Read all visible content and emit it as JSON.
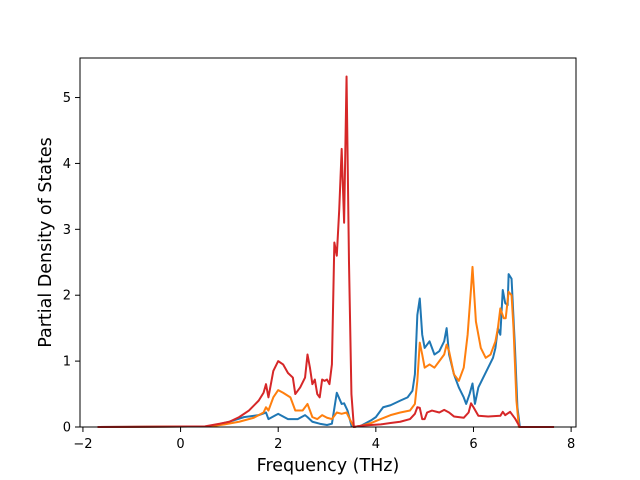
{
  "chart_data": {
    "type": "line",
    "title": "",
    "xlabel": "Frequency (THz)",
    "ylabel": "Partial Density of States",
    "xlim": [
      -2.06,
      8.1
    ],
    "ylim": [
      0,
      5.6
    ],
    "xticks": [
      -2,
      0,
      2,
      4,
      6,
      8
    ],
    "yticks": [
      0,
      1,
      2,
      3,
      4,
      5
    ],
    "grid": false,
    "legend": "none",
    "series": [
      {
        "color": "#1f77b4",
        "points": [
          [
            -1.7,
            0
          ],
          [
            0.6,
            0.01
          ],
          [
            1.0,
            0.08
          ],
          [
            1.3,
            0.15
          ],
          [
            1.6,
            0.18
          ],
          [
            1.75,
            0.22
          ],
          [
            1.8,
            0.12
          ],
          [
            1.95,
            0.18
          ],
          [
            2.0,
            0.2
          ],
          [
            2.2,
            0.12
          ],
          [
            2.4,
            0.12
          ],
          [
            2.55,
            0.18
          ],
          [
            2.6,
            0.15
          ],
          [
            2.7,
            0.08
          ],
          [
            2.85,
            0.05
          ],
          [
            3.0,
            0.03
          ],
          [
            3.1,
            0.05
          ],
          [
            3.2,
            0.52
          ],
          [
            3.3,
            0.35
          ],
          [
            3.35,
            0.36
          ],
          [
            3.42,
            0.25
          ],
          [
            3.5,
            0.02
          ],
          [
            3.55,
            0
          ],
          [
            3.7,
            0.02
          ],
          [
            3.9,
            0.1
          ],
          [
            4.0,
            0.15
          ],
          [
            4.1,
            0.25
          ],
          [
            4.15,
            0.3
          ],
          [
            4.3,
            0.33
          ],
          [
            4.5,
            0.4
          ],
          [
            4.65,
            0.45
          ],
          [
            4.75,
            0.55
          ],
          [
            4.8,
            0.8
          ],
          [
            4.85,
            1.7
          ],
          [
            4.9,
            1.95
          ],
          [
            4.95,
            1.4
          ],
          [
            5.0,
            1.2
          ],
          [
            5.1,
            1.3
          ],
          [
            5.2,
            1.1
          ],
          [
            5.3,
            1.15
          ],
          [
            5.4,
            1.3
          ],
          [
            5.45,
            1.5
          ],
          [
            5.5,
            1.1
          ],
          [
            5.6,
            0.8
          ],
          [
            5.7,
            0.6
          ],
          [
            5.8,
            0.45
          ],
          [
            5.85,
            0.35
          ],
          [
            5.92,
            0.5
          ],
          [
            5.98,
            0.66
          ],
          [
            6.03,
            0.35
          ],
          [
            6.1,
            0.6
          ],
          [
            6.2,
            0.75
          ],
          [
            6.3,
            0.9
          ],
          [
            6.4,
            1.05
          ],
          [
            6.45,
            1.2
          ],
          [
            6.5,
            1.5
          ],
          [
            6.55,
            1.4
          ],
          [
            6.6,
            2.08
          ],
          [
            6.65,
            1.88
          ],
          [
            6.7,
            1.85
          ],
          [
            6.72,
            2.32
          ],
          [
            6.78,
            2.25
          ],
          [
            6.85,
            1.2
          ],
          [
            6.9,
            0.3
          ],
          [
            6.95,
            0
          ],
          [
            7.65,
            0
          ]
        ]
      },
      {
        "color": "#ff7f0e",
        "points": [
          [
            -1.7,
            0
          ],
          [
            0.6,
            0.01
          ],
          [
            0.9,
            0.04
          ],
          [
            1.2,
            0.08
          ],
          [
            1.5,
            0.14
          ],
          [
            1.7,
            0.22
          ],
          [
            1.75,
            0.3
          ],
          [
            1.8,
            0.25
          ],
          [
            1.9,
            0.45
          ],
          [
            2.0,
            0.56
          ],
          [
            2.1,
            0.52
          ],
          [
            2.25,
            0.45
          ],
          [
            2.35,
            0.25
          ],
          [
            2.5,
            0.25
          ],
          [
            2.6,
            0.35
          ],
          [
            2.65,
            0.25
          ],
          [
            2.7,
            0.15
          ],
          [
            2.8,
            0.12
          ],
          [
            2.9,
            0.18
          ],
          [
            3.0,
            0.14
          ],
          [
            3.1,
            0.12
          ],
          [
            3.2,
            0.22
          ],
          [
            3.3,
            0.2
          ],
          [
            3.4,
            0.22
          ],
          [
            3.48,
            0.1
          ],
          [
            3.55,
            0
          ],
          [
            3.7,
            0.02
          ],
          [
            3.9,
            0.06
          ],
          [
            4.1,
            0.12
          ],
          [
            4.3,
            0.18
          ],
          [
            4.5,
            0.22
          ],
          [
            4.7,
            0.25
          ],
          [
            4.8,
            0.35
          ],
          [
            4.85,
            0.7
          ],
          [
            4.9,
            1.28
          ],
          [
            4.95,
            1.1
          ],
          [
            5.0,
            0.9
          ],
          [
            5.1,
            0.95
          ],
          [
            5.2,
            0.9
          ],
          [
            5.3,
            1.0
          ],
          [
            5.4,
            1.1
          ],
          [
            5.45,
            1.25
          ],
          [
            5.5,
            1.15
          ],
          [
            5.6,
            0.8
          ],
          [
            5.7,
            0.7
          ],
          [
            5.8,
            0.9
          ],
          [
            5.88,
            1.4
          ],
          [
            5.95,
            2.1
          ],
          [
            5.98,
            2.43
          ],
          [
            6.05,
            1.6
          ],
          [
            6.15,
            1.2
          ],
          [
            6.25,
            1.05
          ],
          [
            6.35,
            1.1
          ],
          [
            6.45,
            1.3
          ],
          [
            6.5,
            1.5
          ],
          [
            6.55,
            1.8
          ],
          [
            6.62,
            1.65
          ],
          [
            6.66,
            1.65
          ],
          [
            6.72,
            2.05
          ],
          [
            6.78,
            2.0
          ],
          [
            6.82,
            1.5
          ],
          [
            6.88,
            0.4
          ],
          [
            6.93,
            0
          ],
          [
            7.65,
            0
          ]
        ]
      },
      {
        "color": "#d62728",
        "points": [
          [
            -1.7,
            0
          ],
          [
            0.5,
            0.01
          ],
          [
            0.8,
            0.05
          ],
          [
            1.0,
            0.08
          ],
          [
            1.2,
            0.15
          ],
          [
            1.4,
            0.25
          ],
          [
            1.6,
            0.4
          ],
          [
            1.7,
            0.52
          ],
          [
            1.75,
            0.65
          ],
          [
            1.8,
            0.45
          ],
          [
            1.9,
            0.85
          ],
          [
            2.0,
            1.0
          ],
          [
            2.1,
            0.95
          ],
          [
            2.2,
            0.82
          ],
          [
            2.3,
            0.75
          ],
          [
            2.35,
            0.5
          ],
          [
            2.45,
            0.6
          ],
          [
            2.55,
            0.75
          ],
          [
            2.6,
            1.1
          ],
          [
            2.65,
            0.9
          ],
          [
            2.7,
            0.65
          ],
          [
            2.75,
            0.72
          ],
          [
            2.8,
            0.5
          ],
          [
            2.85,
            0.45
          ],
          [
            2.9,
            0.72
          ],
          [
            2.95,
            0.7
          ],
          [
            3.0,
            0.72
          ],
          [
            3.05,
            0.65
          ],
          [
            3.1,
            0.95
          ],
          [
            3.15,
            2.8
          ],
          [
            3.2,
            2.6
          ],
          [
            3.25,
            3.3
          ],
          [
            3.3,
            4.22
          ],
          [
            3.35,
            3.1
          ],
          [
            3.4,
            5.32
          ],
          [
            3.45,
            2.5
          ],
          [
            3.5,
            0.5
          ],
          [
            3.55,
            0
          ],
          [
            3.7,
            0.02
          ],
          [
            3.9,
            0.03
          ],
          [
            4.1,
            0.04
          ],
          [
            4.3,
            0.06
          ],
          [
            4.5,
            0.08
          ],
          [
            4.7,
            0.12
          ],
          [
            4.8,
            0.2
          ],
          [
            4.85,
            0.3
          ],
          [
            4.9,
            0.29
          ],
          [
            4.95,
            0.12
          ],
          [
            5.0,
            0.12
          ],
          [
            5.05,
            0.22
          ],
          [
            5.15,
            0.25
          ],
          [
            5.3,
            0.22
          ],
          [
            5.4,
            0.26
          ],
          [
            5.5,
            0.22
          ],
          [
            5.6,
            0.16
          ],
          [
            5.8,
            0.14
          ],
          [
            5.9,
            0.22
          ],
          [
            5.95,
            0.36
          ],
          [
            6.0,
            0.3
          ],
          [
            6.1,
            0.17
          ],
          [
            6.3,
            0.16
          ],
          [
            6.55,
            0.17
          ],
          [
            6.6,
            0.23
          ],
          [
            6.65,
            0.18
          ],
          [
            6.75,
            0.23
          ],
          [
            6.85,
            0.13
          ],
          [
            6.95,
            0
          ],
          [
            7.65,
            0
          ]
        ]
      }
    ]
  }
}
